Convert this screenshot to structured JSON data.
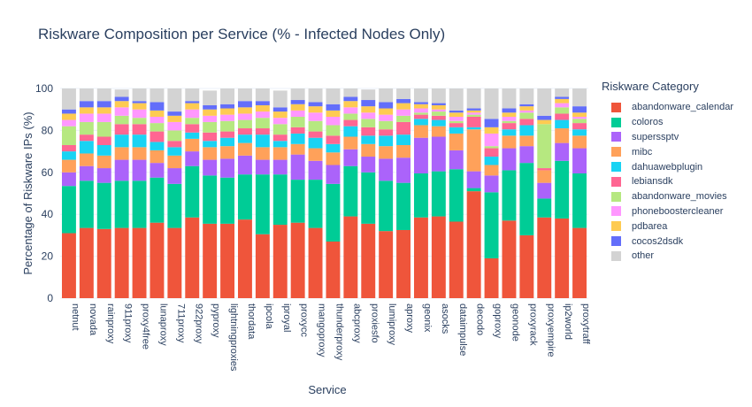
{
  "chart_data": {
    "type": "bar",
    "stacked": true,
    "title": "Riskware Composition per Service (% - Infected Nodes Only)",
    "xlabel": "Service",
    "ylabel": "Percentage of Riskware IPs (%)",
    "ylim": [
      0,
      100
    ],
    "yticks": [
      0,
      20,
      40,
      60,
      80,
      100
    ],
    "grid": true,
    "legend_title": "Riskware Category",
    "legend_position": "right",
    "categories": [
      "netnut",
      "novada",
      "rainproxy",
      "911proxy",
      "proxy4free",
      "lunaproxy",
      "711proxy",
      "922proxy",
      "pyproxy",
      "lightningproxies",
      "thordata",
      "ipcola",
      "iproyal",
      "proxycc",
      "mangoproxy",
      "thunderproxy",
      "abcproxy",
      "proxiesfo",
      "lumiproxy",
      "aproxy",
      "geonix",
      "asocks",
      "dataimpulse",
      "decodo",
      "goproxy",
      "geonode",
      "proxyrack",
      "proxyempire",
      "ip2world",
      "proxytraff"
    ],
    "series": [
      {
        "name": "abandonware_calendar",
        "color": "#EF553B",
        "values": [
          31,
          33.5,
          33,
          33.5,
          33.5,
          36,
          33.5,
          38.5,
          35.5,
          35.5,
          37.5,
          30.5,
          35,
          36,
          33.5,
          27,
          39,
          35.5,
          32,
          32.5,
          38.5,
          39,
          36.5,
          51,
          19,
          37,
          30,
          38.5,
          38,
          33.5
        ]
      },
      {
        "name": "coloros",
        "color": "#00CC96",
        "values": [
          22.5,
          22.5,
          22,
          22.5,
          22.5,
          21.5,
          21,
          24.5,
          23,
          22,
          21.5,
          28.5,
          24,
          20.5,
          23,
          27.5,
          24,
          24.5,
          24,
          22.5,
          21,
          21.5,
          25,
          1.5,
          31.5,
          24,
          34.5,
          9,
          27.5,
          26
        ]
      },
      {
        "name": "superssptv",
        "color": "#AB63FA",
        "values": [
          6.5,
          7,
          7,
          10,
          10,
          7,
          7.5,
          7,
          7.5,
          9,
          9,
          7,
          7,
          12,
          9,
          9,
          8,
          7.5,
          10.5,
          12,
          17,
          16.5,
          9,
          8,
          8,
          10.5,
          8,
          7.5,
          8.5,
          12
        ]
      },
      {
        "name": "mibc",
        "color": "#FFA15A",
        "values": [
          6,
          6,
          6,
          6,
          6,
          6,
          6,
          6,
          6,
          6,
          6,
          6,
          6,
          5,
          6,
          6,
          6,
          6,
          6,
          6,
          6,
          5,
          8,
          20,
          5,
          6,
          5,
          6,
          7,
          6
        ]
      },
      {
        "name": "dahuawebplugin",
        "color": "#19D3F3",
        "values": [
          4,
          6,
          5,
          6,
          6,
          4,
          4,
          3,
          3,
          4,
          4,
          6,
          3,
          5,
          5,
          4,
          5,
          4,
          5,
          5,
          3,
          3,
          3,
          1,
          4,
          3,
          5,
          0,
          4,
          3
        ]
      },
      {
        "name": "lebiansdk",
        "color": "#FF6692",
        "values": [
          3,
          3,
          4,
          5,
          5,
          5,
          3,
          4,
          4,
          3,
          3,
          3,
          3,
          3,
          3,
          4,
          3,
          4,
          3,
          6,
          2,
          2,
          2,
          5,
          4,
          3,
          3,
          1,
          3,
          3
        ]
      },
      {
        "name": "abandonware_movies",
        "color": "#B6E880",
        "values": [
          9,
          6,
          7,
          4,
          3,
          4,
          5,
          3,
          5,
          5,
          4,
          5,
          5,
          5,
          5,
          5,
          3,
          4,
          4,
          3,
          1,
          2,
          1,
          1,
          1,
          1,
          3,
          21,
          3,
          2
        ]
      },
      {
        "name": "phoneboostercleaner",
        "color": "#FF97FF",
        "values": [
          3,
          4,
          4,
          4,
          4,
          3,
          4,
          4,
          3,
          3,
          3,
          3,
          3,
          3,
          4,
          4,
          3,
          3,
          3,
          3,
          2,
          1,
          2,
          1,
          6,
          2,
          1,
          0,
          2,
          1
        ]
      },
      {
        "name": "pdbarea",
        "color": "#FECB52",
        "values": [
          3,
          3,
          3,
          3,
          3,
          3,
          3,
          3,
          3,
          3,
          3,
          3,
          3,
          3,
          3,
          3,
          3,
          3,
          3,
          3,
          2,
          2,
          2,
          1,
          3,
          2,
          2,
          2,
          2,
          2
        ]
      },
      {
        "name": "cocos2dsdk",
        "color": "#636EFA",
        "values": [
          2,
          3,
          3,
          2,
          1,
          4,
          2,
          1,
          2,
          2,
          3,
          2,
          2,
          2,
          2,
          3,
          2,
          3,
          3,
          2,
          1,
          1,
          1,
          1,
          4,
          2,
          1,
          2,
          1,
          3
        ]
      },
      {
        "name": "other",
        "color": "#D3D3D3",
        "values": [
          10,
          6,
          6,
          3.5,
          6,
          6.5,
          11,
          6,
          7,
          7.5,
          6,
          6,
          8,
          5.5,
          6.5,
          7.5,
          4,
          5,
          6.5,
          5,
          6.5,
          7,
          10.5,
          9.5,
          14.5,
          9.5,
          7.5,
          13,
          4,
          8.5
        ]
      }
    ]
  }
}
